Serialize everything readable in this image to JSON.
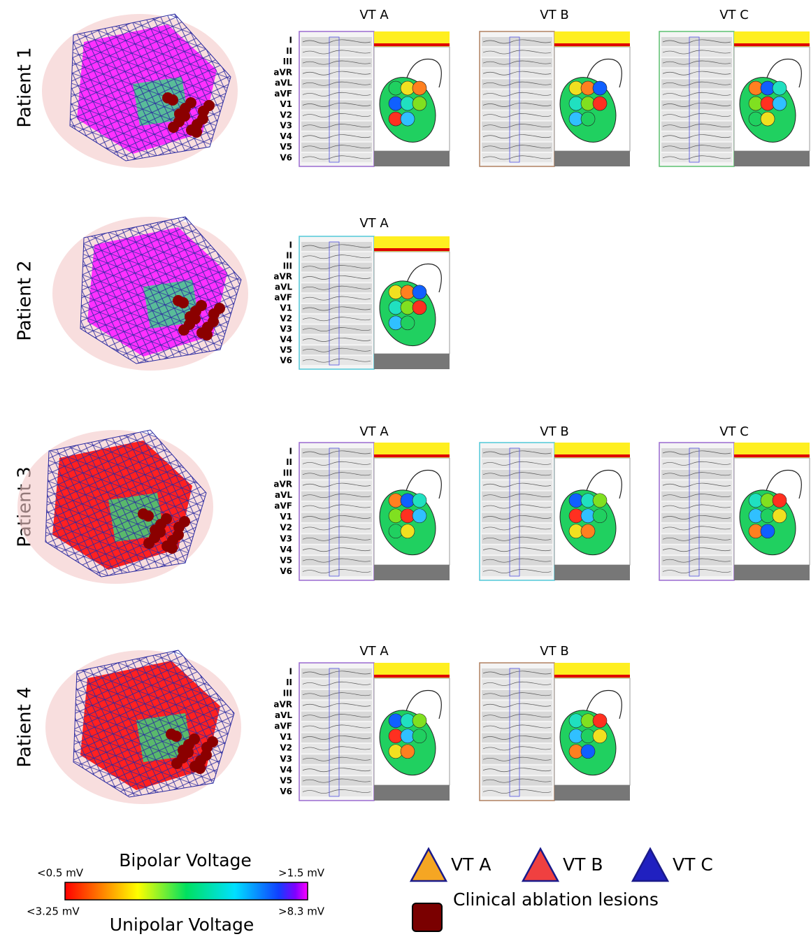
{
  "rows": [
    {
      "patient": "Patient 1",
      "panels": [
        {
          "title": "VT A"
        },
        {
          "title": "VT B"
        },
        {
          "title": "VT C"
        }
      ]
    },
    {
      "patient": "Patient 2",
      "panels": [
        {
          "title": "VT A"
        }
      ]
    },
    {
      "patient": "Patient 3",
      "panels": [
        {
          "title": "VT A"
        },
        {
          "title": "VT B"
        },
        {
          "title": "VT C"
        }
      ]
    },
    {
      "patient": "Patient 4",
      "panels": [
        {
          "title": "VT A"
        },
        {
          "title": "VT B"
        }
      ]
    }
  ],
  "leads": [
    "I",
    "II",
    "III",
    "aVR",
    "aVL",
    "aVF",
    "V1",
    "V2",
    "V3",
    "V4",
    "V5",
    "V6"
  ],
  "legend": {
    "bipolar_title": "Bipolar Voltage",
    "bipolar_min": "<0.5 mV",
    "bipolar_max": ">1.5 mV",
    "unipolar_min": "<3.25 mV",
    "unipolar_max": ">8.3 mV",
    "unipolar_title": "Unipolar Voltage",
    "vt_labels": [
      "VT A",
      "VT B",
      "VT C"
    ],
    "lesions": "Clinical ablation lesions"
  }
}
